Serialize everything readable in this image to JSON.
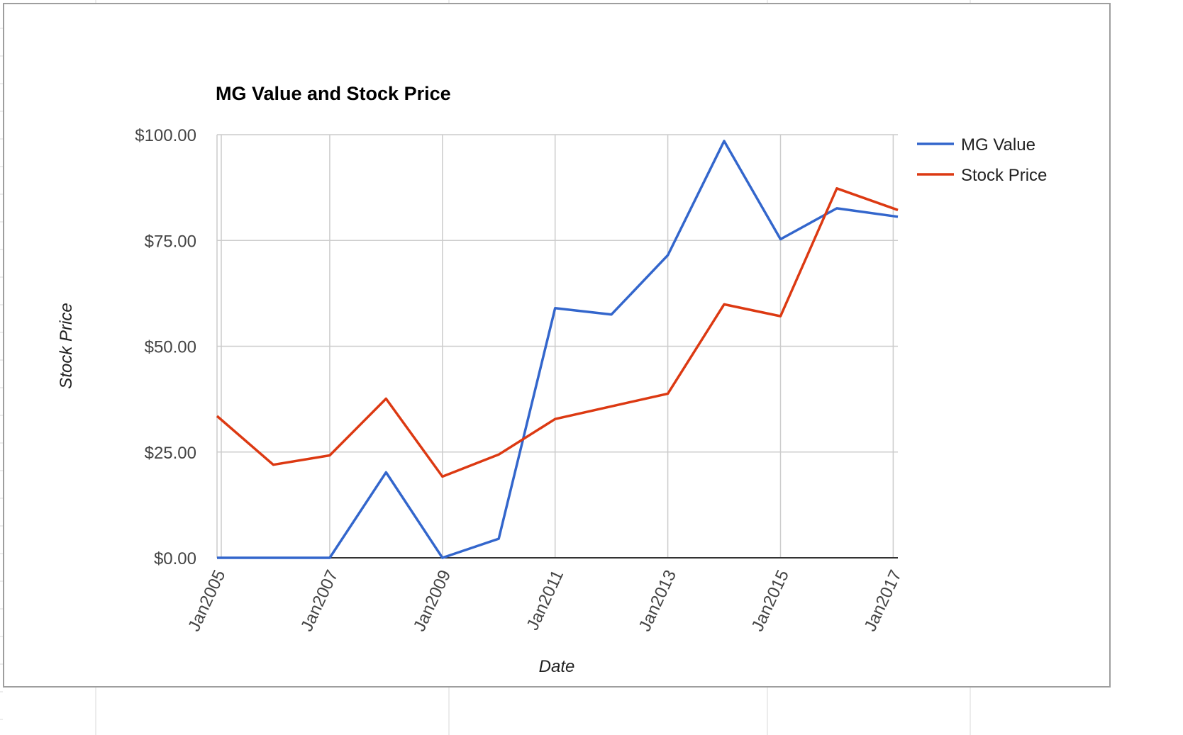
{
  "chart_data": {
    "type": "line",
    "title": "MG Value and Stock Price",
    "xlabel": "Date",
    "ylabel": "Stock Price",
    "x_tick_labels": [
      "Jan2005",
      "Jan2007",
      "Jan2009",
      "Jan2011",
      "Jan2013",
      "Jan2015",
      "Jan2017"
    ],
    "x_tick_years": [
      2005,
      2007,
      2009,
      2011,
      2013,
      2015,
      2017
    ],
    "y_tick_labels": [
      "$0.00",
      "$25.00",
      "$50.00",
      "$75.00",
      "$100.00"
    ],
    "y_ticks": [
      0,
      25,
      50,
      75,
      100
    ],
    "xlim": [
      "2005-01",
      "2017-02"
    ],
    "ylim": [
      0,
      100
    ],
    "grid": true,
    "legend_position": "right",
    "series": [
      {
        "name": "MG Value",
        "color": "#3366cc",
        "points": [
          {
            "x": "2005-01",
            "y": 0
          },
          {
            "x": "2006-01",
            "y": 0
          },
          {
            "x": "2007-01",
            "y": 0
          },
          {
            "x": "2008-01",
            "y": 20.2
          },
          {
            "x": "2009-01",
            "y": 0
          },
          {
            "x": "2010-01",
            "y": 4.5
          },
          {
            "x": "2011-01",
            "y": 59
          },
          {
            "x": "2012-01",
            "y": 57.5
          },
          {
            "x": "2013-01",
            "y": 71.5
          },
          {
            "x": "2014-01",
            "y": 98.5
          },
          {
            "x": "2015-01",
            "y": 75.3
          },
          {
            "x": "2016-01",
            "y": 82.6
          },
          {
            "x": "2017-02",
            "y": 80.6
          }
        ]
      },
      {
        "name": "Stock Price",
        "color": "#dc3912",
        "points": [
          {
            "x": "2005-01",
            "y": 33.5
          },
          {
            "x": "2006-01",
            "y": 22
          },
          {
            "x": "2007-01",
            "y": 24.2
          },
          {
            "x": "2008-01",
            "y": 37.6
          },
          {
            "x": "2009-01",
            "y": 19.2
          },
          {
            "x": "2010-01",
            "y": 24.4
          },
          {
            "x": "2011-01",
            "y": 32.8
          },
          {
            "x": "2012-01",
            "y": 35.8
          },
          {
            "x": "2013-01",
            "y": 38.8
          },
          {
            "x": "2014-01",
            "y": 59.9
          },
          {
            "x": "2015-01",
            "y": 57.1
          },
          {
            "x": "2016-01",
            "y": 87.3
          },
          {
            "x": "2017-02",
            "y": 82.2
          }
        ]
      }
    ]
  }
}
